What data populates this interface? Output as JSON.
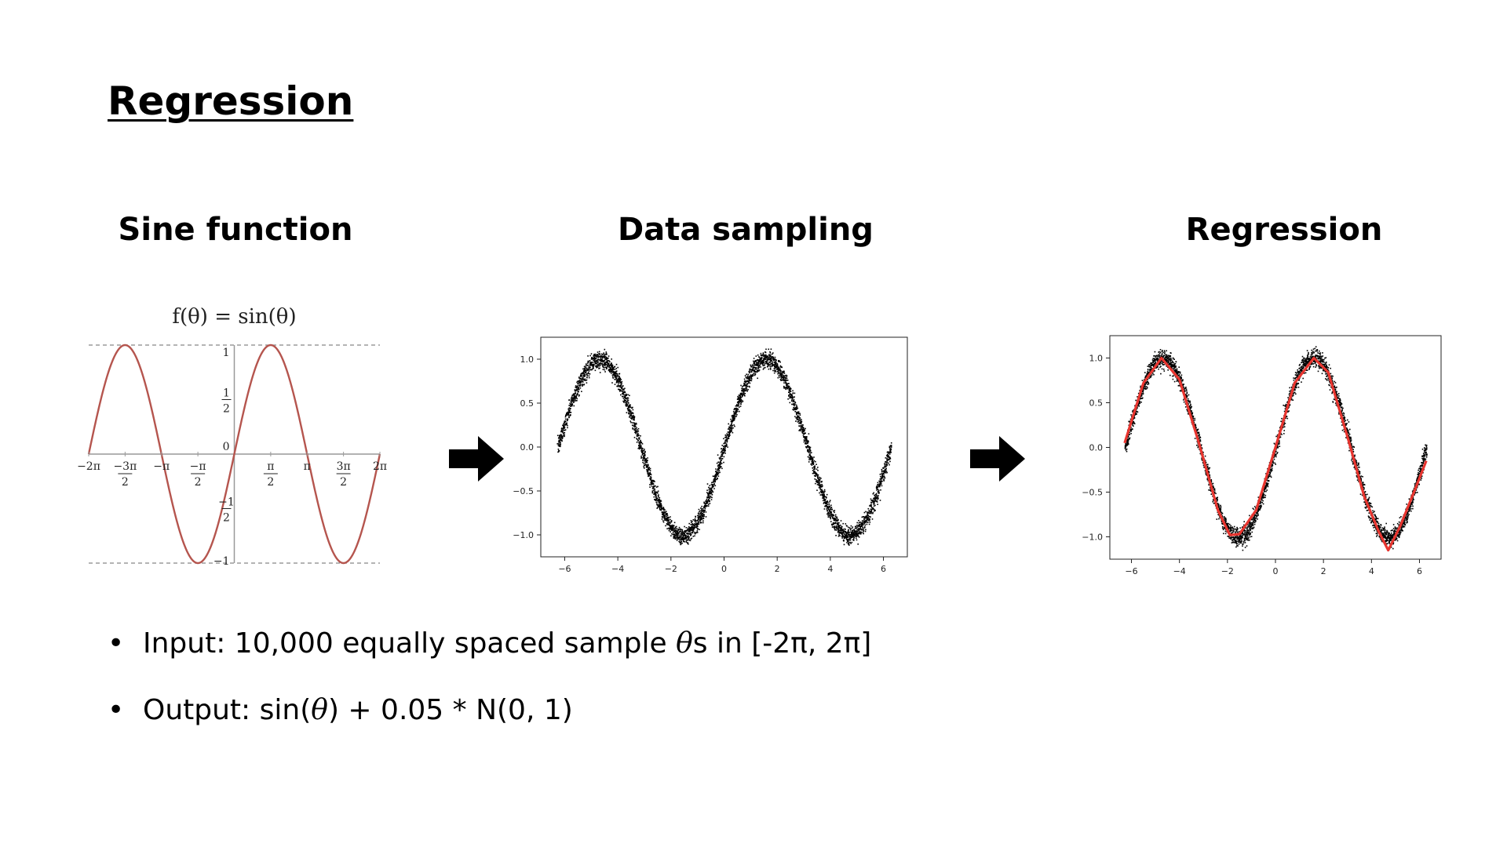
{
  "slide": {
    "title": "Regression",
    "bullets": [
      {
        "prefix": "Input: 10,000 equally spaced sample ",
        "theta": "θ",
        "suffix": "s in [-2π, 2π]"
      },
      {
        "prefix": "Output: sin(",
        "theta": "θ",
        "suffix": ") + 0.05 * N(0, 1)"
      }
    ],
    "bullet_symbol": "•"
  },
  "panels": [
    {
      "title": "Sine function"
    },
    {
      "title": "Data sampling"
    },
    {
      "title": "Regression"
    }
  ],
  "chart_data": [
    {
      "type": "line",
      "title": "f(θ) = sin(θ)",
      "function": "sin",
      "xlim": [
        -6.2832,
        6.2832
      ],
      "ylim": [
        -1,
        1
      ],
      "x_ticks": [
        {
          "value": -6.2832,
          "label": "−2π"
        },
        {
          "value": -4.7124,
          "label": "−3π/2"
        },
        {
          "value": -3.1416,
          "label": "−π"
        },
        {
          "value": -1.5708,
          "label": "−π/2"
        },
        {
          "value": 1.5708,
          "label": "π/2"
        },
        {
          "value": 3.1416,
          "label": "π"
        },
        {
          "value": 4.7124,
          "label": "3π/2"
        },
        {
          "value": 6.2832,
          "label": "2π"
        }
      ],
      "y_ticks": [
        {
          "value": 1,
          "label": "1"
        },
        {
          "value": 0.5,
          "label": "1/2"
        },
        {
          "value": 0,
          "label": "0"
        },
        {
          "value": -0.5,
          "label": "−1/2"
        },
        {
          "value": -1,
          "label": "−1"
        }
      ],
      "line_color": "#b5554e"
    },
    {
      "type": "scatter",
      "function": "sin(x) + 0.05 * N(0, 1)",
      "xlim": [
        -6.9,
        6.9
      ],
      "ylim": [
        -1.25,
        1.25
      ],
      "x_ticks": [
        -6,
        -4,
        -2,
        0,
        2,
        4,
        6
      ],
      "y_ticks": [
        1.0,
        0.5,
        0.0,
        -0.5,
        -1.0
      ],
      "n_points": 10000,
      "color": "#000000"
    },
    {
      "type": "line",
      "function": "sin(x) + 0.05 * N(0, 1)",
      "xlim": [
        -6.9,
        6.9
      ],
      "ylim": [
        -1.25,
        1.25
      ],
      "x_ticks": [
        -6,
        -4,
        -2,
        0,
        2,
        4,
        6
      ],
      "y_ticks": [
        1.0,
        0.5,
        0.0,
        -0.5,
        -1.0
      ],
      "scatter_color": "#000000",
      "fit_color": "#e8352f",
      "fit": {
        "x": [
          -6.2832,
          -5.5,
          -4.75,
          -4.0,
          -3.2,
          -2.4,
          -1.9,
          -1.5,
          -0.8,
          0.0,
          0.8,
          1.6,
          2.2,
          3.0,
          3.7,
          4.3,
          4.7,
          5.2,
          5.8,
          6.2832
        ],
        "y": [
          0.05,
          0.72,
          1.0,
          0.76,
          0.06,
          -0.7,
          -0.98,
          -0.97,
          -0.7,
          0.0,
          0.72,
          1.0,
          0.84,
          0.12,
          -0.55,
          -0.94,
          -1.15,
          -0.88,
          -0.48,
          -0.15
        ]
      }
    }
  ]
}
